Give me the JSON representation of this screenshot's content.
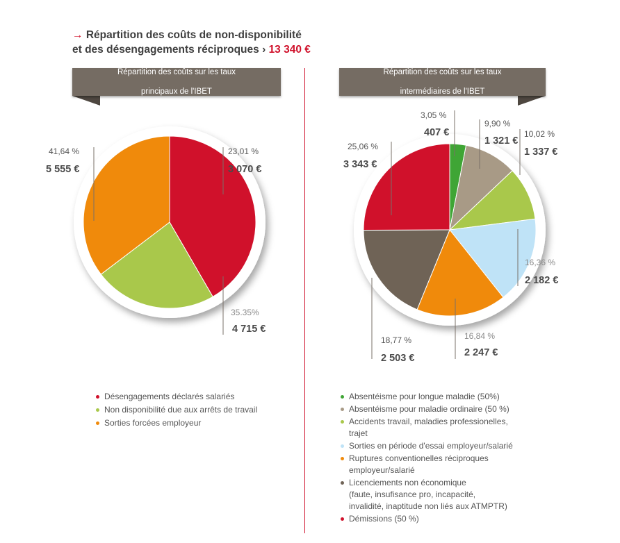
{
  "title": {
    "arrow": "→",
    "line1": "Répartition des coûts de non-disponibilité",
    "line2": "et des désengagements réciproques",
    "separator": "›",
    "total": "13 340 €"
  },
  "chart_data": [
    {
      "type": "pie",
      "title": "Répartition des coûts sur les taux principaux de l'IBET",
      "title_lines": [
        "Répartition des coûts sur les taux",
        "principaux de l'IBET"
      ],
      "series": [
        {
          "name": "Désengagements déclarés salariés",
          "percent_label": "41,64 %",
          "amount_label": "5 555 €",
          "value": 5555,
          "color": "#d0112b"
        },
        {
          "name": "Non disponibilité due aux arrêts de travail",
          "percent_label": "23,01 %",
          "amount_label": "3 070 €",
          "value": 3070,
          "color": "#a9c84b"
        },
        {
          "name": "Sorties forcées employeur",
          "percent_label": "35.35%",
          "amount_label": "4 715 €",
          "value": 4715,
          "color": "#f08a0b"
        }
      ]
    },
    {
      "type": "pie",
      "title": "Répartition des coûts sur les taux intermédiaires de l'IBET",
      "title_lines": [
        "Répartition des coûts sur les taux",
        "intermédiaires de l'IBET"
      ],
      "series": [
        {
          "name": "Absentéisme pour longue maladie (50%)",
          "percent_label": "3,05 %",
          "amount_label": "407 €",
          "value": 407,
          "color": "#3fa535"
        },
        {
          "name": "Absentéisme pour maladie ordinaire (50 %)",
          "percent_label": "9,90 %",
          "amount_label": "1 321 €",
          "value": 1321,
          "color": "#a89a86"
        },
        {
          "name": "Accidents travail, maladies professionelles, trajet",
          "percent_label": "10,02 %",
          "amount_label": "1 337 €",
          "value": 1337,
          "color": "#a9c84b"
        },
        {
          "name": "Sorties en période d'essai employeur/salarié",
          "percent_label": "16,36 %",
          "amount_label": "2 182 €",
          "value": 2182,
          "color": "#bfe3f7"
        },
        {
          "name": "Ruptures conventionelles réciproques employeur/salarié",
          "percent_label": "16,84 %",
          "amount_label": "2 247 €",
          "value": 2247,
          "color": "#f08a0b"
        },
        {
          "name": "Licenciements non économique (faute, insufisance pro, incapacité, invalidité, inaptitude non liés aux ATMPTR)",
          "percent_label": "18,77 %",
          "amount_label": "2 503 €",
          "value": 2503,
          "color": "#6f6356"
        },
        {
          "name": "Démissions (50 %)",
          "percent_label": "25,06 %",
          "amount_label": "3 343 €",
          "value": 3343,
          "color": "#d0112b"
        }
      ]
    }
  ],
  "legend_left": [
    {
      "lines": [
        "Désengagements déclarés salariés"
      ],
      "color": "#d0112b"
    },
    {
      "lines": [
        "Non disponibilité due aux arrêts de travail"
      ],
      "color": "#a9c84b"
    },
    {
      "lines": [
        "Sorties forcées employeur"
      ],
      "color": "#f08a0b"
    }
  ],
  "legend_right": [
    {
      "lines": [
        "Absentéisme pour longue maladie (50%)"
      ],
      "color": "#3fa535"
    },
    {
      "lines": [
        "Absentéisme pour maladie ordinaire (50 %)"
      ],
      "color": "#a89a86"
    },
    {
      "lines": [
        "Accidents travail, maladies professionelles,",
        "trajet"
      ],
      "color": "#a9c84b"
    },
    {
      "lines": [
        "Sorties en période d'essai employeur/salarié"
      ],
      "color": "#bfe3f7"
    },
    {
      "lines": [
        "Ruptures conventionelles réciproques",
        "employeur/salarié"
      ],
      "color": "#f08a0b"
    },
    {
      "lines": [
        "Licenciements non économique",
        "(faute, insufisance pro, incapacité,",
        "invalidité, inaptitude non liés aux ATMPTR)"
      ],
      "color": "#6f6356"
    },
    {
      "lines": [
        "Démissions (50 %)"
      ],
      "color": "#d0112b"
    }
  ]
}
